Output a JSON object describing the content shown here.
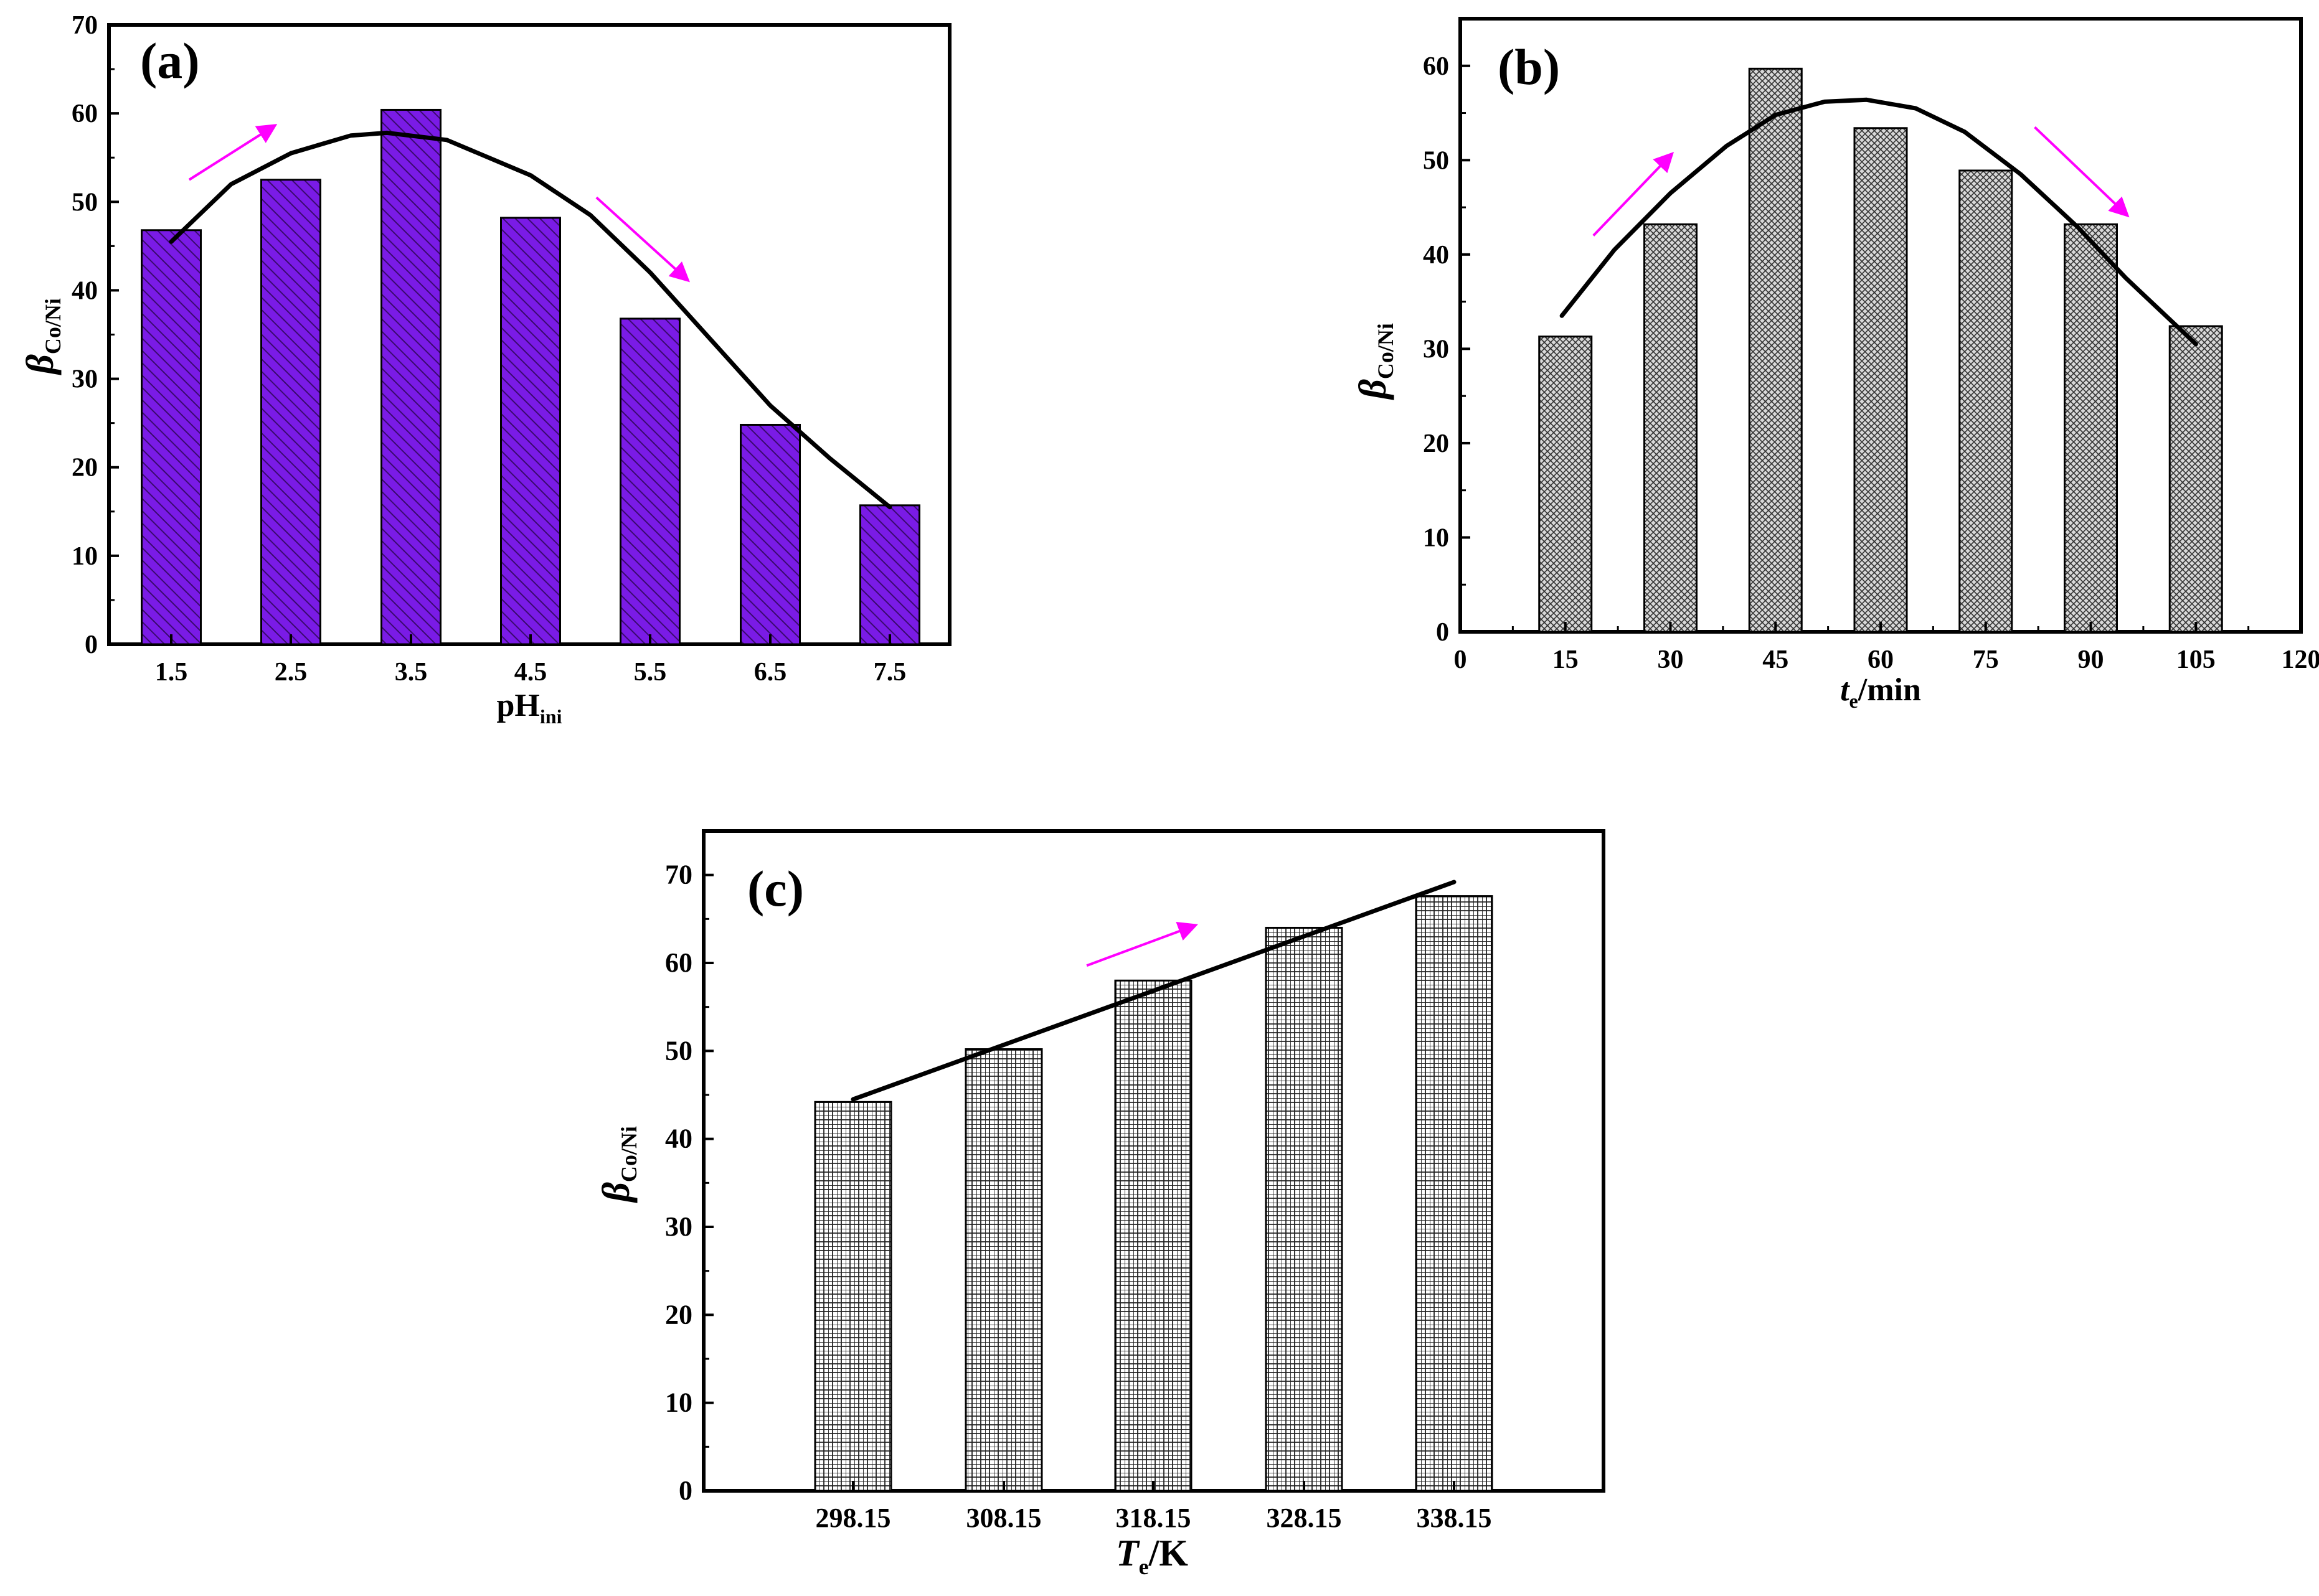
{
  "colors": {
    "panel_a_bar": "#7a1be6",
    "panel_b_bar": "#d4d4d4",
    "panel_c_bar": "#ffffff",
    "trend_line": "#000000",
    "arrow": "#ff00ff"
  },
  "chart_data": [
    {
      "type": "bar",
      "panel_label": "(a)",
      "ylabel_symbol": "β",
      "ylabel_sub": "Co/Ni",
      "xlabel_main": "pH",
      "xlabel_sub": "ini",
      "xlabel_italic": false,
      "categories": [
        "1.5",
        "2.5",
        "3.5",
        "4.5",
        "5.5",
        "6.5",
        "7.5"
      ],
      "values": [
        46.8,
        52.5,
        60.4,
        48.2,
        36.8,
        24.8,
        15.7
      ],
      "ylim": [
        0,
        70
      ],
      "yticks": [
        "0",
        "10",
        "20",
        "30",
        "40",
        "50",
        "60",
        "70"
      ],
      "trend_line": {
        "x": [
          1.5,
          2,
          2.5,
          3,
          3.3,
          3.8,
          4.5,
          5,
          5.5,
          6,
          6.5,
          7,
          7.5
        ],
        "y": [
          45.5,
          52,
          55.5,
          57.5,
          57.8,
          57,
          53,
          48.5,
          42,
          34.5,
          27,
          21,
          15.5
        ]
      },
      "arrows": [
        {
          "from": [
            1.65,
            52.5
          ],
          "to": [
            2.35,
            58.5
          ]
        },
        {
          "from": [
            5.05,
            50.5
          ],
          "to": [
            5.8,
            41.3
          ]
        }
      ]
    },
    {
      "type": "bar",
      "panel_label": "(b)",
      "ylabel_symbol": "β",
      "ylabel_sub": "Co/Ni",
      "xlabel_main": "t",
      "xlabel_sub": "e",
      "xlabel_rest": "/min",
      "xlabel_italic": true,
      "categories": [
        "15",
        "30",
        "45",
        "60",
        "75",
        "90",
        "105"
      ],
      "x": [
        15,
        30,
        45,
        60,
        75,
        90,
        105
      ],
      "xticks": [
        "0",
        "15",
        "30",
        "45",
        "60",
        "75",
        "90",
        "105",
        "120"
      ],
      "values": [
        31.3,
        43.2,
        59.7,
        53.4,
        48.9,
        43.2,
        32.4
      ],
      "xlim": [
        0,
        120
      ],
      "ylim": [
        0,
        65
      ],
      "yticks": [
        "0",
        "10",
        "20",
        "30",
        "40",
        "50",
        "60"
      ],
      "trend_line": {
        "x": [
          14.5,
          22,
          30,
          38,
          45,
          52,
          58,
          65,
          72,
          80,
          88,
          95,
          105
        ],
        "y": [
          33.5,
          40.5,
          46.5,
          51.5,
          54.8,
          56.2,
          56.4,
          55.5,
          53,
          48.5,
          43,
          37.5,
          30.5
        ]
      },
      "arrows": [
        {
          "from": [
            19,
            42
          ],
          "to": [
            30,
            50.5
          ]
        },
        {
          "from": [
            82,
            53.5
          ],
          "to": [
            95,
            44.3
          ]
        }
      ]
    },
    {
      "type": "bar",
      "panel_label": "(c)",
      "ylabel_symbol": "β",
      "ylabel_sub": "Co/Ni",
      "xlabel_main": "T",
      "xlabel_sub": "e",
      "xlabel_rest": "/K",
      "xlabel_italic": true,
      "categories": [
        "298.15",
        "308.15",
        "318.15",
        "328.15",
        "338.15"
      ],
      "values": [
        44.2,
        50.2,
        58.0,
        64.0,
        67.6
      ],
      "ylim": [
        0,
        75
      ],
      "yticks": [
        "0",
        "10",
        "20",
        "30",
        "40",
        "50",
        "60",
        "70"
      ],
      "trend_line": {
        "x": [
          298.15,
          338.15
        ],
        "y": [
          44.5,
          69.2
        ]
      },
      "arrows": [
        {
          "from": [
            313.7,
            59.7
          ],
          "to": [
            320.8,
            64.2
          ]
        }
      ]
    }
  ]
}
